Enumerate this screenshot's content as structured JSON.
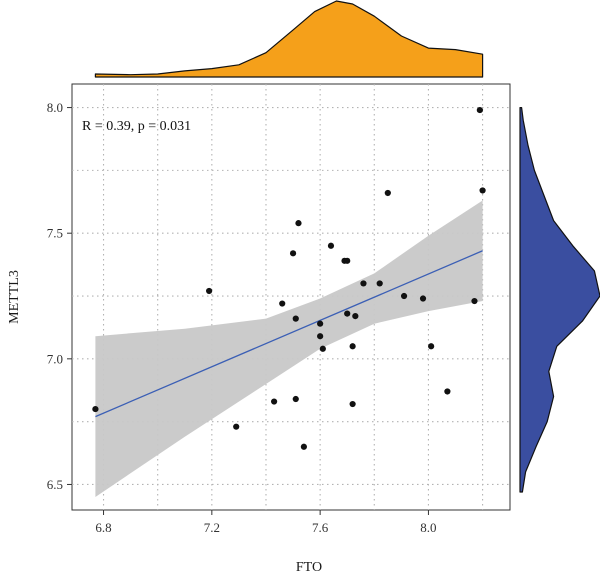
{
  "chart_data": {
    "type": "scatter",
    "xlabel": "FTO",
    "ylabel": "METTL3",
    "annotation": "R = 0.39, p = 0.031",
    "xlim": [
      6.75,
      8.22
    ],
    "ylim": [
      6.47,
      8.05
    ],
    "x_ticks": [
      6.8,
      7.2,
      7.6,
      8.0
    ],
    "x_tick_labels": [
      "6.8",
      "7.2",
      "7.6",
      "8.0"
    ],
    "y_ticks": [
      6.5,
      7.0,
      7.5,
      8.0
    ],
    "y_tick_labels": [
      "6.5",
      "7.0",
      "7.5",
      "8.0"
    ],
    "grid": true,
    "points": [
      {
        "x": 6.77,
        "y": 6.8
      },
      {
        "x": 7.19,
        "y": 7.27
      },
      {
        "x": 7.29,
        "y": 6.73
      },
      {
        "x": 7.43,
        "y": 6.83
      },
      {
        "x": 7.46,
        "y": 7.22
      },
      {
        "x": 7.5,
        "y": 7.42
      },
      {
        "x": 7.51,
        "y": 6.84
      },
      {
        "x": 7.51,
        "y": 7.16
      },
      {
        "x": 7.52,
        "y": 7.54
      },
      {
        "x": 7.54,
        "y": 6.65
      },
      {
        "x": 7.6,
        "y": 7.14
      },
      {
        "x": 7.6,
        "y": 7.09
      },
      {
        "x": 7.61,
        "y": 7.04
      },
      {
        "x": 7.64,
        "y": 7.45
      },
      {
        "x": 7.69,
        "y": 7.39
      },
      {
        "x": 7.7,
        "y": 7.39
      },
      {
        "x": 7.7,
        "y": 7.18
      },
      {
        "x": 7.72,
        "y": 7.05
      },
      {
        "x": 7.72,
        "y": 6.82
      },
      {
        "x": 7.73,
        "y": 7.17
      },
      {
        "x": 7.76,
        "y": 7.3
      },
      {
        "x": 7.82,
        "y": 7.3
      },
      {
        "x": 7.85,
        "y": 7.66
      },
      {
        "x": 7.91,
        "y": 7.25
      },
      {
        "x": 7.98,
        "y": 7.24
      },
      {
        "x": 8.01,
        "y": 7.05
      },
      {
        "x": 8.07,
        "y": 6.87
      },
      {
        "x": 8.17,
        "y": 7.23
      },
      {
        "x": 8.19,
        "y": 7.99
      },
      {
        "x": 8.2,
        "y": 7.67
      }
    ],
    "regression": {
      "x0": 6.77,
      "y0": 6.77,
      "x1": 8.2,
      "y1": 7.43
    },
    "confidence_band": [
      {
        "x": 6.77,
        "lower": 6.45,
        "upper": 7.09
      },
      {
        "x": 7.1,
        "lower": 6.69,
        "upper": 7.12
      },
      {
        "x": 7.4,
        "lower": 6.9,
        "upper": 7.16
      },
      {
        "x": 7.6,
        "lower": 7.04,
        "upper": 7.24
      },
      {
        "x": 7.8,
        "lower": 7.14,
        "upper": 7.34
      },
      {
        "x": 8.0,
        "lower": 7.19,
        "upper": 7.49
      },
      {
        "x": 8.2,
        "lower": 7.23,
        "upper": 7.63
      }
    ],
    "x_density": [
      {
        "x": 6.77,
        "d": 0.04
      },
      {
        "x": 6.9,
        "d": 0.03
      },
      {
        "x": 7.0,
        "d": 0.04
      },
      {
        "x": 7.1,
        "d": 0.08
      },
      {
        "x": 7.2,
        "d": 0.11
      },
      {
        "x": 7.3,
        "d": 0.16
      },
      {
        "x": 7.4,
        "d": 0.32
      },
      {
        "x": 7.5,
        "d": 0.62
      },
      {
        "x": 7.58,
        "d": 0.86
      },
      {
        "x": 7.66,
        "d": 1.0
      },
      {
        "x": 7.72,
        "d": 0.96
      },
      {
        "x": 7.8,
        "d": 0.8
      },
      {
        "x": 7.9,
        "d": 0.54
      },
      {
        "x": 8.0,
        "d": 0.38
      },
      {
        "x": 8.1,
        "d": 0.36
      },
      {
        "x": 8.2,
        "d": 0.3
      }
    ],
    "y_density": [
      {
        "y": 6.47,
        "d": 0.03
      },
      {
        "y": 6.55,
        "d": 0.07
      },
      {
        "y": 6.65,
        "d": 0.2
      },
      {
        "y": 6.75,
        "d": 0.34
      },
      {
        "y": 6.85,
        "d": 0.42
      },
      {
        "y": 6.95,
        "d": 0.36
      },
      {
        "y": 7.05,
        "d": 0.46
      },
      {
        "y": 7.15,
        "d": 0.78
      },
      {
        "y": 7.25,
        "d": 1.0
      },
      {
        "y": 7.35,
        "d": 0.93
      },
      {
        "y": 7.45,
        "d": 0.66
      },
      {
        "y": 7.55,
        "d": 0.42
      },
      {
        "y": 7.65,
        "d": 0.3
      },
      {
        "y": 7.75,
        "d": 0.18
      },
      {
        "y": 7.85,
        "d": 0.1
      },
      {
        "y": 7.95,
        "d": 0.04
      },
      {
        "y": 8.0,
        "d": 0.02
      }
    ],
    "colors": {
      "points": "#111111",
      "line": "#3b5fb5",
      "band": "#c8c8c8",
      "x_density": "#f5a01a",
      "y_density": "#3a4ea0",
      "grid": "#b3b3b3",
      "frame": "#333333"
    }
  }
}
